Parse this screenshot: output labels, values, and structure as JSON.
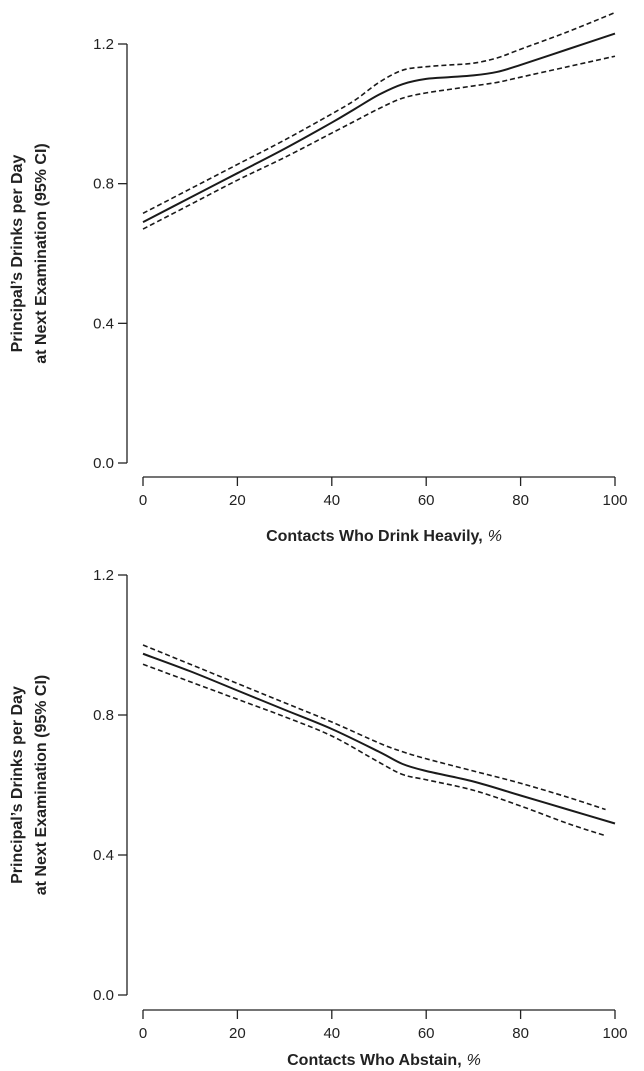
{
  "colors": {
    "line": "#1a1a1a",
    "axis": "#222222",
    "background": "#ffffff"
  },
  "chart_data": [
    {
      "type": "line",
      "xlabel": "Contacts Who Drink Heavily,",
      "xlabel_unit": "%",
      "ylabel_line1": "Principal’s Drinks per Day",
      "ylabel_line2": "at Next Examination (95% CI)",
      "xlim": [
        0,
        100
      ],
      "ylim": [
        0,
        1.2
      ],
      "xticks": [
        "0",
        "20",
        "40",
        "60",
        "80",
        "100"
      ],
      "yticks": [
        "0.0",
        "0.4",
        "0.8",
        "1.2"
      ],
      "grid": false,
      "series": [
        {
          "style": "solid",
          "x": [
            0,
            10,
            20,
            30,
            40,
            45,
            50,
            55,
            60,
            65,
            70,
            75,
            80,
            90,
            100
          ],
          "y": [
            0.69,
            0.76,
            0.83,
            0.9,
            0.975,
            1.015,
            1.055,
            1.085,
            1.1,
            1.105,
            1.11,
            1.12,
            1.14,
            1.185,
            1.23
          ]
        },
        {
          "style": "dashed",
          "x": [
            0,
            10,
            20,
            30,
            40,
            45,
            50,
            55,
            60,
            65,
            70,
            75,
            80,
            90,
            100
          ],
          "y": [
            0.715,
            0.785,
            0.855,
            0.925,
            1.0,
            1.04,
            1.09,
            1.125,
            1.135,
            1.14,
            1.145,
            1.16,
            1.185,
            1.235,
            1.29
          ]
        },
        {
          "style": "dashed",
          "x": [
            0,
            10,
            20,
            30,
            40,
            45,
            50,
            55,
            60,
            65,
            70,
            75,
            80,
            90,
            100
          ],
          "y": [
            0.67,
            0.74,
            0.81,
            0.875,
            0.945,
            0.98,
            1.015,
            1.045,
            1.06,
            1.07,
            1.08,
            1.09,
            1.105,
            1.135,
            1.165
          ]
        }
      ]
    },
    {
      "type": "line",
      "xlabel": "Contacts Who Abstain,",
      "xlabel_unit": "%",
      "ylabel_line1": "Principal’s Drinks per Day",
      "ylabel_line2": "at Next Examination (95% CI)",
      "xlim": [
        0,
        100
      ],
      "ylim": [
        0,
        1.2
      ],
      "xticks": [
        "0",
        "20",
        "40",
        "60",
        "80",
        "100"
      ],
      "yticks": [
        "0.0",
        "0.4",
        "0.8",
        "1.2"
      ],
      "grid": false,
      "series": [
        {
          "style": "solid",
          "x": [
            0,
            10,
            20,
            30,
            40,
            50,
            55,
            60,
            70,
            80,
            90,
            100
          ],
          "y": [
            0.975,
            0.925,
            0.87,
            0.815,
            0.76,
            0.695,
            0.66,
            0.64,
            0.61,
            0.57,
            0.53,
            0.49
          ]
        },
        {
          "style": "dashed",
          "x": [
            0,
            10,
            20,
            30,
            40,
            50,
            55,
            60,
            70,
            80,
            90,
            98
          ],
          "y": [
            1.0,
            0.945,
            0.89,
            0.835,
            0.78,
            0.72,
            0.695,
            0.675,
            0.64,
            0.605,
            0.565,
            0.53
          ]
        },
        {
          "style": "dashed",
          "x": [
            0,
            10,
            20,
            30,
            40,
            50,
            55,
            60,
            70,
            80,
            90,
            98
          ],
          "y": [
            0.945,
            0.895,
            0.845,
            0.795,
            0.74,
            0.665,
            0.63,
            0.615,
            0.585,
            0.54,
            0.49,
            0.455
          ]
        }
      ]
    }
  ]
}
